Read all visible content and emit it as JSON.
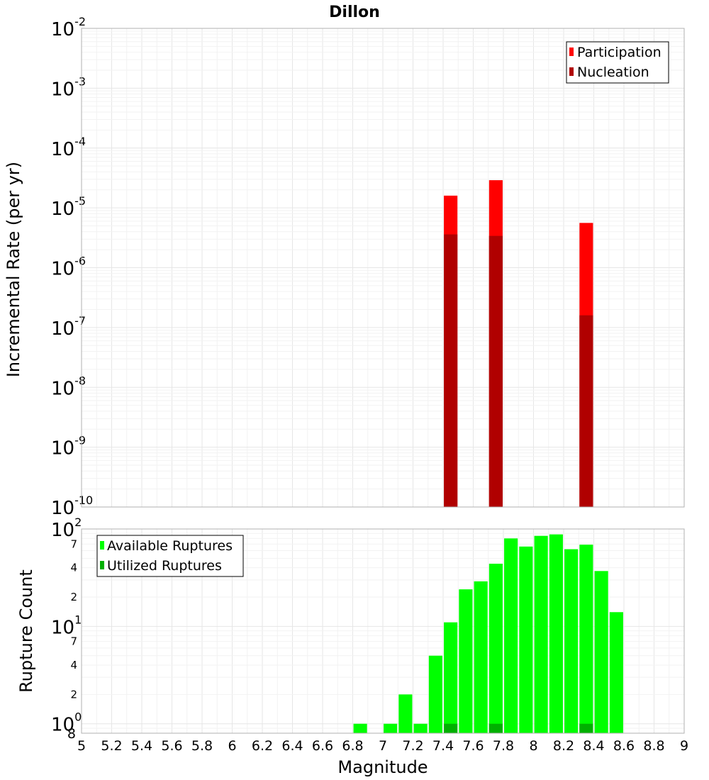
{
  "chart_data": [
    {
      "type": "bar",
      "title": "Dillon",
      "xlabel": "",
      "ylabel": "Incremental Rate (per yr)",
      "yscale": "log",
      "ylim": [
        1e-10,
        0.01
      ],
      "xlim": [
        5,
        9
      ],
      "y_tick_labels": [
        {
          "base": "10",
          "exp": "-10"
        },
        {
          "base": "10",
          "exp": "-9"
        },
        {
          "base": "10",
          "exp": "-8"
        },
        {
          "base": "10",
          "exp": "-7"
        },
        {
          "base": "10",
          "exp": "-6"
        },
        {
          "base": "10",
          "exp": "-5"
        },
        {
          "base": "10",
          "exp": "-4"
        },
        {
          "base": "10",
          "exp": "-3"
        },
        {
          "base": "10",
          "exp": "-2"
        }
      ],
      "bar_width": 0.09,
      "legend_position": "top-right",
      "series": [
        {
          "name": "Participation",
          "color": "#ff0000",
          "x": [
            7.45,
            7.75,
            8.35
          ],
          "values": [
            1.6e-05,
            2.9e-05,
            5.6e-06
          ]
        },
        {
          "name": "Nucleation",
          "color": "#b00000",
          "x": [
            7.45,
            7.75,
            8.35
          ],
          "values": [
            3.6e-06,
            3.4e-06,
            1.6e-07
          ]
        }
      ]
    },
    {
      "type": "bar",
      "title": "",
      "xlabel": "Magnitude",
      "ylabel": "Rupture Count",
      "yscale": "log",
      "ylim": [
        0.8,
        100
      ],
      "xlim": [
        5,
        9
      ],
      "x_ticks": [
        "5",
        "5.2",
        "5.4",
        "5.6",
        "5.8",
        "6",
        "6.2",
        "6.4",
        "6.6",
        "6.8",
        "7",
        "7.2",
        "7.4",
        "7.6",
        "7.8",
        "8",
        "8.2",
        "8.4",
        "8.6",
        "8.8",
        "9"
      ],
      "y_major_ticks": [
        {
          "value": 1,
          "base": "10",
          "exp": "0"
        },
        {
          "value": 10,
          "base": "10",
          "exp": "1"
        },
        {
          "value": 100,
          "base": "10",
          "exp": "2"
        }
      ],
      "y_minor_ticks": [
        {
          "value": 0.8,
          "label": "8"
        },
        {
          "value": 2,
          "label": "2"
        },
        {
          "value": 4,
          "label": "4"
        },
        {
          "value": 7,
          "label": "7"
        },
        {
          "value": 20,
          "label": "2"
        },
        {
          "value": 40,
          "label": "4"
        },
        {
          "value": 70,
          "label": "7"
        }
      ],
      "bar_width": 0.09,
      "legend_position": "top-left",
      "series": [
        {
          "name": "Available Ruptures",
          "color": "#00ff00",
          "x": [
            6.85,
            7.05,
            7.15,
            7.25,
            7.35,
            7.45,
            7.55,
            7.65,
            7.75,
            7.85,
            7.95,
            8.05,
            8.15,
            8.25,
            8.35,
            8.45,
            8.55
          ],
          "values": [
            1,
            1,
            2,
            1,
            5,
            11,
            24,
            29,
            44,
            80,
            66,
            85,
            88,
            62,
            69,
            37,
            14
          ]
        },
        {
          "name": "Utilized Ruptures",
          "color": "#00b000",
          "x": [
            7.45,
            7.75,
            8.35
          ],
          "values": [
            1,
            1,
            1
          ]
        }
      ]
    }
  ]
}
